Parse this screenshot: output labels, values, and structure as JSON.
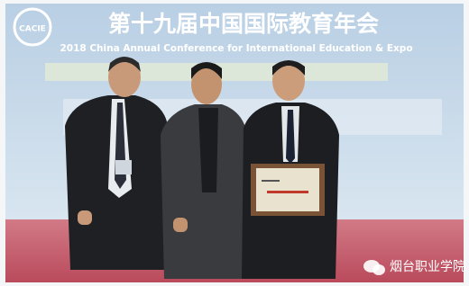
{
  "banner": {
    "logo": "CACIE",
    "title": "第十九届中国国际教育年会",
    "subtitle": "2018 China Annual Conference for International Education & Expo"
  },
  "watermark": {
    "text": "烟台职业学院"
  }
}
